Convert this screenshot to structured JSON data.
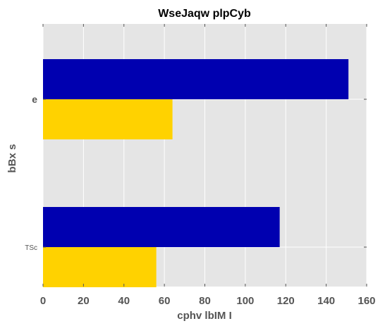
{
  "chart_data": {
    "type": "bar",
    "orientation": "horizontal",
    "title": "WseJaqw plpCyb",
    "xlabel": "cphv lbIM I",
    "ylabel": "bBx s",
    "categories": [
      "e",
      "TSc"
    ],
    "series": [
      {
        "values": [
          151,
          117
        ],
        "color": "#0000b0"
      },
      {
        "values": [
          64,
          56
        ],
        "color": "#ffd200"
      }
    ],
    "xlim": [
      0,
      160
    ],
    "xticks": [
      "0",
      "20",
      "40",
      "60",
      "80",
      "100",
      "120",
      "140",
      "160"
    ],
    "grid": true,
    "legend": "none",
    "background": "#e5e5e5"
  }
}
